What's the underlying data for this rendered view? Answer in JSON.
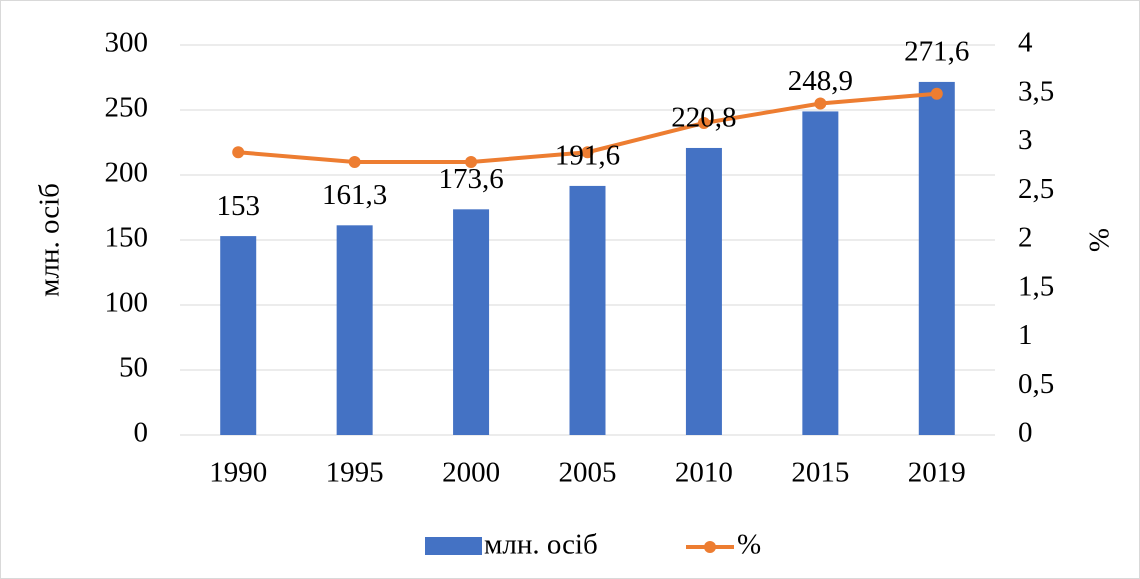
{
  "chart_data": {
    "type": "bar_line",
    "categories": [
      "1990",
      "1995",
      "2000",
      "2005",
      "2010",
      "2015",
      "2019"
    ],
    "series": [
      {
        "name": "млн. осіб",
        "color": "#4472c4",
        "type": "bar",
        "axis": "y",
        "values": [
          153,
          161.3,
          173.6,
          191.6,
          220.8,
          248.9,
          271.6
        ],
        "value_labels": [
          "153",
          "161,3",
          "173,6",
          "191,6",
          "220,8",
          "248,9",
          "271,6"
        ]
      },
      {
        "name": "%",
        "color": "#ed7d31",
        "type": "line",
        "axis": "y2",
        "values": [
          2.9,
          2.8,
          2.8,
          2.9,
          3.2,
          3.4,
          3.5
        ]
      }
    ],
    "ylabel": "млн. осіб",
    "y2label": "%",
    "ylim": [
      0,
      300
    ],
    "yticks": [
      0,
      50,
      100,
      150,
      200,
      250,
      300
    ],
    "y2lim": [
      0,
      4
    ],
    "y2ticks": [
      0,
      {
        "value": 0.5,
        "label": "0,5"
      },
      1,
      {
        "value": 1.5,
        "label": "1,5"
      },
      2,
      {
        "value": 2.5,
        "label": "2,5"
      },
      3,
      {
        "value": 3.5,
        "label": "3,5"
      },
      4
    ],
    "grid": true,
    "legend": "bottom"
  }
}
